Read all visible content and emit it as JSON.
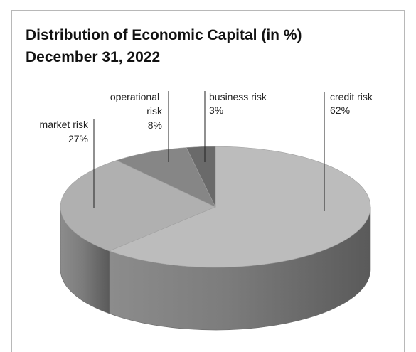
{
  "chart_data": {
    "type": "pie",
    "title": [
      "Distribution of Economic Capital (in %)",
      "December 31, 2022"
    ],
    "categories": [
      "credit risk",
      "market risk",
      "operational risk",
      "business risk"
    ],
    "values": [
      62,
      27,
      8,
      3
    ],
    "units": "%",
    "colors": [
      "#bcbcbc",
      "#b0b0b0",
      "#868686",
      "#6a6a6a"
    ],
    "legend": "none",
    "labels": [
      {
        "name": "credit risk",
        "text": "62%"
      },
      {
        "name": "market risk",
        "text": "27%"
      },
      {
        "name": "operational risk",
        "text": "8%"
      },
      {
        "name": "business risk",
        "text": "3%"
      }
    ]
  }
}
